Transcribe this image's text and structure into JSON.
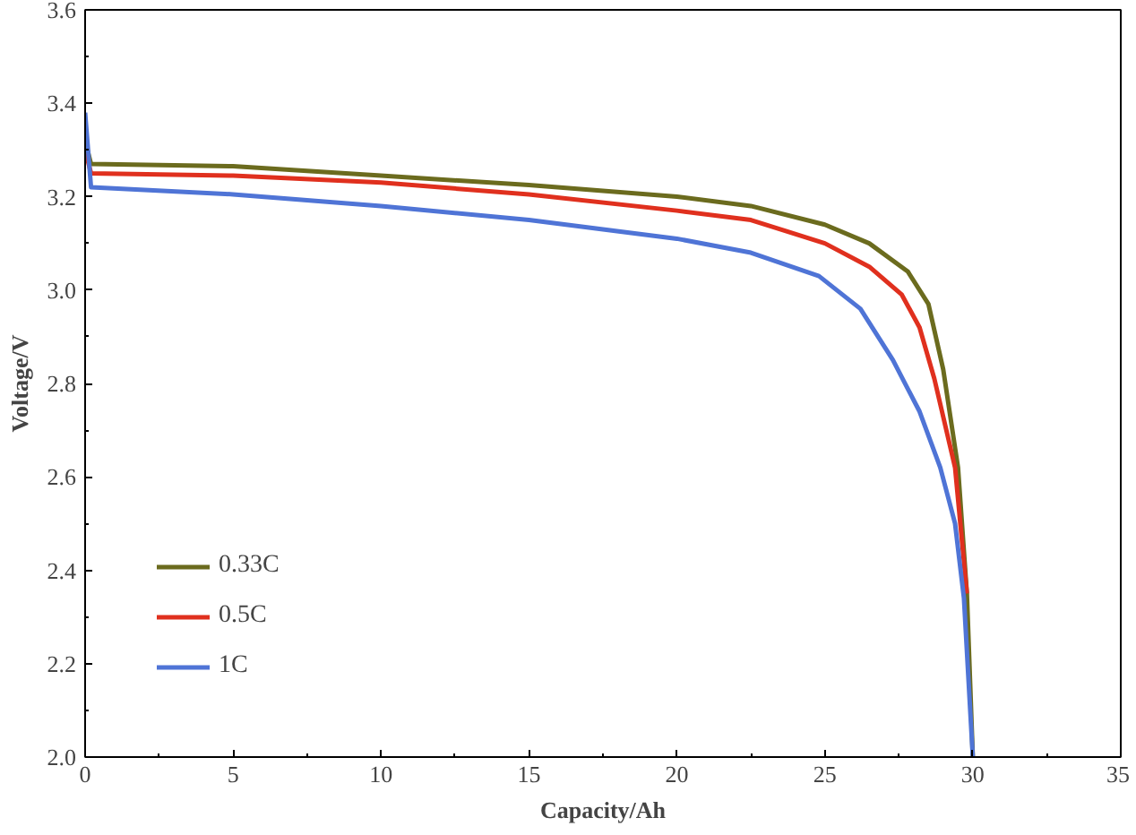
{
  "chart_data": {
    "type": "line",
    "xlabel": "Capacity/Ah",
    "ylabel": "Voltage/V",
    "xlim": [
      0,
      35
    ],
    "ylim": [
      2.0,
      3.6
    ],
    "xticks": [
      0,
      5,
      10,
      15,
      20,
      25,
      30,
      35
    ],
    "yticks": [
      {
        "value": 2.0,
        "label": "2.0"
      },
      2.2,
      2.4,
      2.6,
      2.8,
      {
        "value": 3.0,
        "label": "3.0"
      },
      3.2,
      3.4,
      3.6
    ],
    "grid": false,
    "legend": "bottom left",
    "line_style": "solid",
    "series": [
      {
        "name": "0.33C",
        "color": "#6b6b1e",
        "x": [
          0,
          0.2,
          5,
          10,
          15,
          20,
          22.5,
          25,
          26.5,
          27.8,
          28.5,
          29.0,
          29.5,
          29.8,
          30.0
        ],
        "values": [
          3.32,
          3.27,
          3.265,
          3.245,
          3.225,
          3.2,
          3.18,
          3.14,
          3.1,
          3.04,
          2.97,
          2.83,
          2.62,
          2.35,
          2.0
        ]
      },
      {
        "name": "0.5C",
        "color": "#e0301e",
        "x": [
          0,
          0.2,
          5,
          10,
          15,
          20,
          22.5,
          25,
          26.5,
          27.6,
          28.2,
          28.7,
          29.4,
          29.8
        ],
        "values": [
          3.3,
          3.25,
          3.245,
          3.23,
          3.205,
          3.17,
          3.15,
          3.1,
          3.05,
          2.99,
          2.92,
          2.81,
          2.62,
          2.35
        ]
      },
      {
        "name": "1C",
        "color": "#4f74d6",
        "x": [
          0,
          0.2,
          5,
          10,
          15,
          20,
          22.5,
          24.8,
          26.2,
          27.3,
          28.2,
          28.9,
          29.4,
          29.7,
          30.0
        ],
        "values": [
          3.38,
          3.22,
          3.205,
          3.18,
          3.15,
          3.11,
          3.08,
          3.03,
          2.96,
          2.85,
          2.74,
          2.62,
          2.5,
          2.34,
          2.0
        ]
      }
    ]
  }
}
